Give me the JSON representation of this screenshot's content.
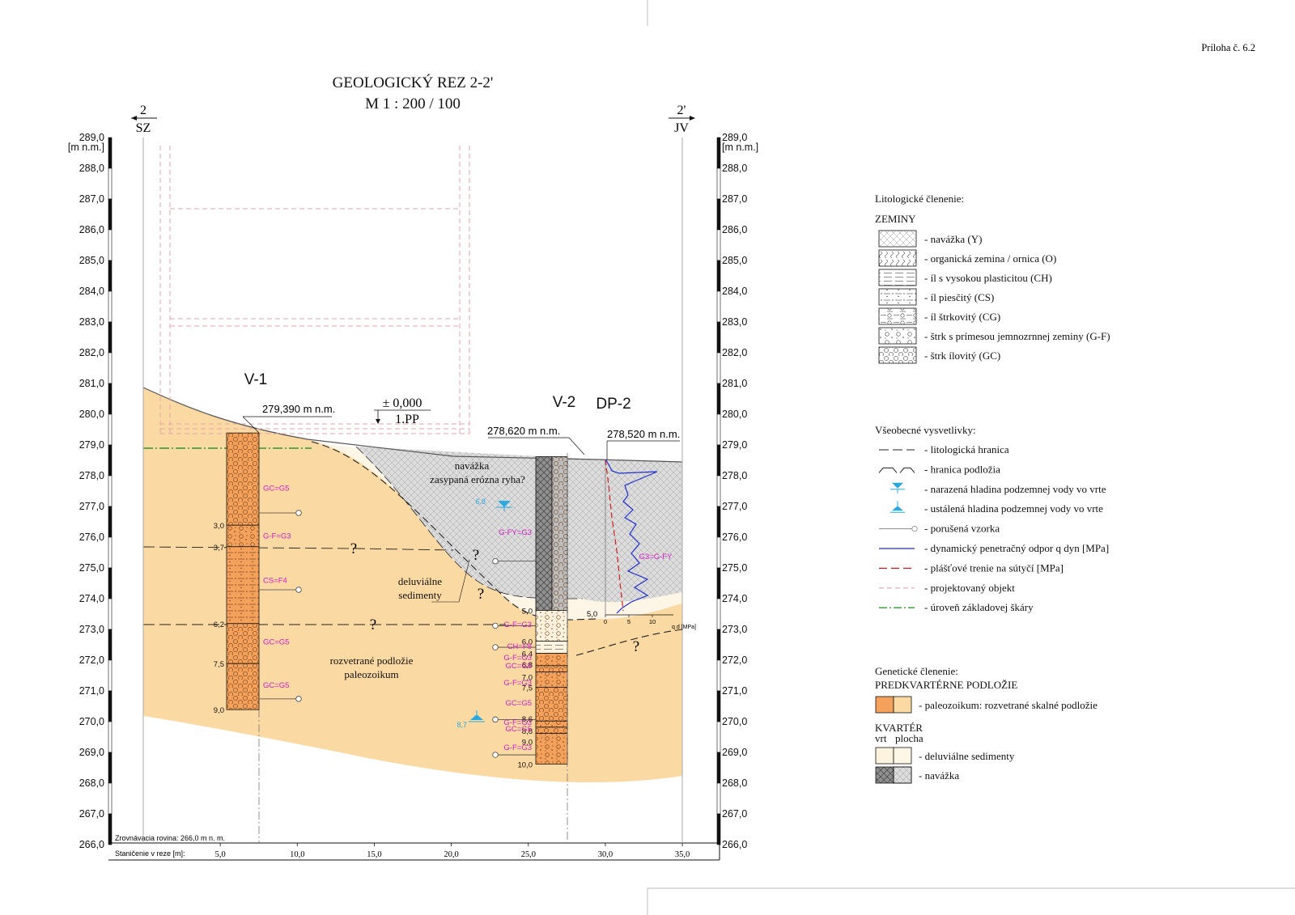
{
  "attachment": "Príloha č. 6.2",
  "title": {
    "line1": "GEOLOGICKÝ REZ 2-2'",
    "line2": "M 1 : 200 / 100"
  },
  "section_marks": {
    "left": {
      "number": "2",
      "direction": "SZ"
    },
    "right": {
      "number": "2'",
      "direction": "JV"
    }
  },
  "elev_unit": "[m n.m.]",
  "elev_ticks": [
    "289,0",
    "288,0",
    "287,0",
    "286,0",
    "285,0",
    "284,0",
    "283,0",
    "282,0",
    "281,0",
    "280,0",
    "279,0",
    "278,0",
    "277,0",
    "276,0",
    "275,0",
    "274,0",
    "273,0",
    "272,0",
    "271,0",
    "270,0",
    "269,0",
    "268,0",
    "267,0",
    "266,0"
  ],
  "station_label": "Staničenie v reze [m]:",
  "station_ticks": [
    "5,0",
    "10,0",
    "15,0",
    "20,0",
    "25,0",
    "30,0",
    "35,0"
  ],
  "datum_label": "Zrovnávacia rovina: 266,0 m n. m.",
  "building": {
    "zero_level": "± 0,000",
    "floor": "1.PP"
  },
  "boreholes": {
    "v1": {
      "name": "V-1",
      "elevation": "279,390 m n.m.",
      "depths": [
        "3,0",
        "3,7",
        "6,2",
        "7,5",
        "9,0"
      ],
      "classes": [
        "GC=G5",
        "G-F=G3",
        "CS=F4",
        "GC=G5",
        "GC=G5"
      ]
    },
    "v2": {
      "name": "V-2",
      "elevation": "278,620 m n.m.",
      "depths": [
        "5,0",
        "6,0",
        "6,4",
        "6,8",
        "7,0",
        "7,5",
        "8,6",
        "8,8",
        "9,0",
        "10,0"
      ],
      "classes": [
        "G-FY=G3",
        "G-F=G3",
        "CH=F8",
        "G-F=G3",
        "GC=G5",
        "G-F=G3",
        "GC=G5",
        "G-F=G3",
        "GC=G5",
        "G-F=G3"
      ],
      "water_encountered": "6,8",
      "water_steady": "8,7"
    },
    "dp2": {
      "name": "DP-2",
      "elevation": "278,520 m n.m.",
      "class": "G3=G-FY",
      "depth": "5,0",
      "axis_ticks": [
        "0",
        "5",
        "10"
      ],
      "axis_unit": "q d [MPa]"
    }
  },
  "unit_labels": {
    "fill_line1": "navážka",
    "fill_line2": "zasypaná erózna ryha?",
    "deluvial_line1": "deluviálne",
    "deluvial_line2": "sedimenty",
    "bedrock_line1": "rozvetrané podložie",
    "bedrock_line2": "paleozoikum",
    "question": "?"
  },
  "legend": {
    "lito_title": "Litologické členenie:",
    "soils_title": "ZEMINY",
    "soils": [
      "- navážka (Y)",
      "- organická zemina / ornica (O)",
      "- íl s vysokou plasticitou (CH)",
      "- íl piesčitý (CS)",
      "- íl štrkovitý (CG)",
      "- štrk s prímesou jemnozrnnej zeminy (G-F)",
      "- štrk ílovitý (GC)"
    ],
    "general_title": "Všeobecné vysvetlivky:",
    "general": [
      "- litologická hranica",
      "- hranica podložia",
      "- narazená hladina podzemnej vody vo vrte",
      "- ustálená hladina podzemnej vody vo vrte",
      "- porušená vzorka",
      "- dynamický penetračný odpor q dyn [MPa]",
      "- plášťové trenie na sútyčí [MPa]",
      "- projektovaný objekt",
      "- úroveň základovej škáry"
    ],
    "genetic_title": "Genetické členenie:",
    "prequat_title": "PREDKVARTÉRNE PODLOŽIE",
    "paleo": "- paleozoikum: rozvetrané skalné podložie",
    "quat_title": "KVARTÉR",
    "col_vrt": "vrt",
    "col_plocha": "plocha",
    "deluvial": "- deluviálne sedimenty",
    "fill": "- navážka"
  },
  "colors": {
    "bedrock_area": "#fbd9a3",
    "deluvial_area": "#fdf5e6",
    "fill_area": "#dcdcdc",
    "bedrock_column": "#f4a15c",
    "deluvial_column": "#fdf2dd",
    "fill_column": "#8f8f8f",
    "penetration": "#1f2fd1",
    "friction": "#d21c1c",
    "foundation": "#2a9a2a",
    "project": "#e7a3ad",
    "class_label": "#d21cc7",
    "water": "#2aa9e0"
  }
}
